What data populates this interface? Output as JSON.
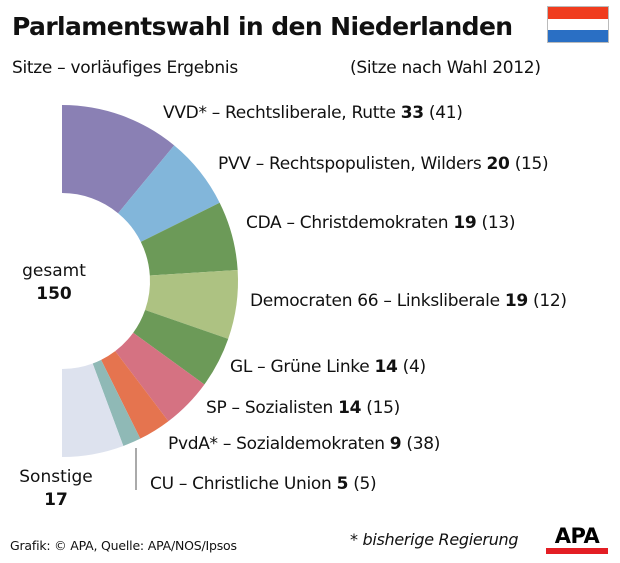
{
  "header": {
    "title": "Parlamentswahl in den Niederlanden",
    "subtitle": "Sitze – vorläufiges Ergebnis",
    "subtitle_right": "(Sitze nach Wahl 2012)",
    "flag_colors": [
      "#f03c1e",
      "#ffffff",
      "#2a6fc4"
    ]
  },
  "chart_data": {
    "type": "pie",
    "variant": "half-donut (parliament seats)",
    "title": "Parlamentswahl in den Niederlanden",
    "subtitle": "Sitze – vorläufiges Ergebnis",
    "total_label": "gesamt",
    "total": 150,
    "series": [
      {
        "name": "VVD* – Rechtsliberale, Rutte",
        "value": 33,
        "previous": 41,
        "color": "#8a80b4"
      },
      {
        "name": "PVV – Rechtspopulisten, Wilders",
        "value": 20,
        "previous": 15,
        "color": "#82b6da"
      },
      {
        "name": "CDA – Christdemokraten",
        "value": 19,
        "previous": 13,
        "color": "#6c9a58"
      },
      {
        "name": "Democraten 66 – Linksliberale",
        "value": 19,
        "previous": 12,
        "color": "#adc282"
      },
      {
        "name": "GL – Grüne Linke",
        "value": 14,
        "previous": 4,
        "color": "#6c9a58"
      },
      {
        "name": "SP – Sozialisten",
        "value": 14,
        "previous": 15,
        "color": "#d57282"
      },
      {
        "name": "PvdA* – Sozialdemokraten",
        "value": 9,
        "previous": 38,
        "color": "#e5744f"
      },
      {
        "name": "CU – Christliche Union",
        "value": 5,
        "previous": 5,
        "color": "#8fb9b6"
      },
      {
        "name": "Sonstige",
        "value": 17,
        "previous": null,
        "color": "#dde2ee"
      }
    ],
    "labels": [
      {
        "text": "VVD* – Rechtsliberale, Rutte ",
        "value": "33",
        "prev": " (41)"
      },
      {
        "text": "PVV – Rechtspopulisten, Wilders ",
        "value": "20",
        "prev": " (15)"
      },
      {
        "text": "CDA – Christdemokraten ",
        "value": "19",
        "prev": " (13)"
      },
      {
        "text": "Democraten 66 – Linksliberale ",
        "value": "19",
        "prev": " (12)"
      },
      {
        "text": "GL – Grüne Linke ",
        "value": "14",
        "prev": " (4)"
      },
      {
        "text": "SP – Sozialisten ",
        "value": "14",
        "prev": " (15)"
      },
      {
        "text": "PvdA* – Sozialdemokraten ",
        "value": "9",
        "prev": " (38)"
      },
      {
        "text": "CU – Christliche Union ",
        "value": "5",
        "prev": " (5)"
      }
    ],
    "others_label": "Sonstige",
    "others_value": "17"
  },
  "footer": {
    "source": "Grafik: © APA, Quelle: APA/NOS/Ipsos",
    "note": "* bisherige Regierung",
    "logo": "APA"
  }
}
